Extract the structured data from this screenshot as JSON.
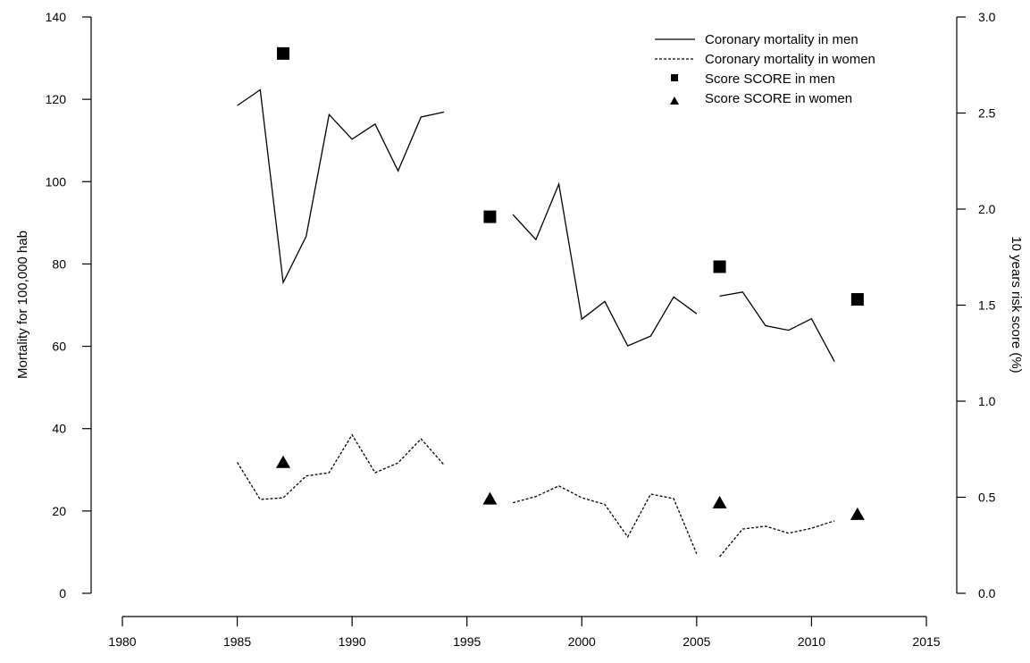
{
  "chart_data": {
    "type": "line",
    "x_axis": {
      "ticks": [
        1980,
        1985,
        1990,
        1995,
        2000,
        2005,
        2010,
        2015
      ],
      "range": [
        1980,
        2015
      ]
    },
    "y_left": {
      "label": "Mortality for 100,000 hab",
      "ticks": [
        0,
        20,
        40,
        60,
        80,
        100,
        120,
        140
      ],
      "range": [
        0,
        140
      ]
    },
    "y_right": {
      "label": "10 years risk score (%)",
      "ticks": [
        "0.0",
        "0.5",
        "1.0",
        "1.5",
        "2.0",
        "2.5",
        "3.0"
      ],
      "range": [
        0,
        3
      ]
    },
    "legend": {
      "placement": "top-right",
      "entries": [
        {
          "name": "Coronary mortality in men",
          "style": "solid-line"
        },
        {
          "name": "Coronary mortality in women",
          "style": "dashed-line"
        },
        {
          "name": "Score SCORE in men",
          "style": "square"
        },
        {
          "name": "Score SCORE in women",
          "style": "triangle"
        }
      ]
    },
    "series": [
      {
        "name": "Coronary mortality in men",
        "axis": "left",
        "style": "solid",
        "segments": [
          [
            [
              1985,
              118.5
            ],
            [
              1986,
              122.3
            ],
            [
              1987,
              75.5
            ],
            [
              1988,
              86.7
            ],
            [
              1989,
              116.3
            ],
            [
              1990,
              110.3
            ],
            [
              1991,
              114.0
            ],
            [
              1992,
              102.6
            ],
            [
              1993,
              115.7
            ],
            [
              1994,
              116.9
            ]
          ],
          [
            [
              1997,
              92.0
            ],
            [
              1998,
              85.9
            ],
            [
              1999,
              99.4
            ],
            [
              2000,
              66.6
            ],
            [
              2001,
              70.9
            ],
            [
              2002,
              60.1
            ],
            [
              2003,
              62.5
            ],
            [
              2004,
              72.0
            ],
            [
              2005,
              67.9
            ]
          ],
          [
            [
              2006,
              72.2
            ],
            [
              2007,
              73.2
            ],
            [
              2008,
              65.0
            ],
            [
              2009,
              63.9
            ],
            [
              2010,
              66.7
            ],
            [
              2011,
              56.3
            ]
          ]
        ]
      },
      {
        "name": "Coronary mortality in women",
        "axis": "left",
        "style": "dashed",
        "segments": [
          [
            [
              1985,
              31.8
            ],
            [
              1986,
              22.8
            ],
            [
              1987,
              23.2
            ],
            [
              1988,
              28.5
            ],
            [
              1989,
              29.3
            ],
            [
              1990,
              38.5
            ],
            [
              1991,
              29.3
            ],
            [
              1992,
              31.7
            ],
            [
              1993,
              37.5
            ],
            [
              1994,
              31.2
            ]
          ],
          [
            [
              1997,
              22.0
            ],
            [
              1998,
              23.5
            ],
            [
              1999,
              26.1
            ],
            [
              2000,
              23.2
            ],
            [
              2001,
              21.6
            ],
            [
              2002,
              13.7
            ],
            [
              2003,
              24.1
            ],
            [
              2004,
              23.0
            ],
            [
              2005,
              9.6
            ]
          ],
          [
            [
              2006,
              8.9
            ],
            [
              2007,
              15.6
            ],
            [
              2008,
              16.3
            ],
            [
              2009,
              14.6
            ],
            [
              2010,
              15.8
            ],
            [
              2011,
              17.6
            ]
          ]
        ]
      },
      {
        "name": "Score SCORE in men",
        "axis": "right",
        "marker": "square",
        "points": [
          [
            1987,
            2.81
          ],
          [
            1996,
            1.96
          ],
          [
            2006,
            1.7
          ],
          [
            2012,
            1.53
          ]
        ]
      },
      {
        "name": "Score SCORE in women",
        "axis": "right",
        "marker": "triangle",
        "points": [
          [
            1987,
            0.68
          ],
          [
            1996,
            0.49
          ],
          [
            2006,
            0.47
          ],
          [
            2012,
            0.41
          ]
        ]
      }
    ]
  }
}
